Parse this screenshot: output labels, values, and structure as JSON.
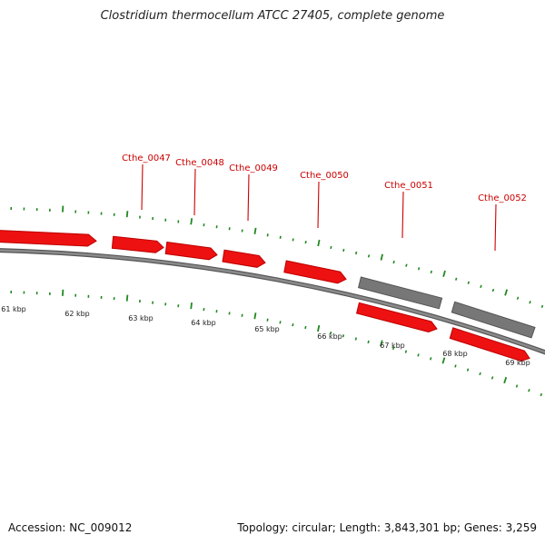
{
  "title": "Clostridium thermocellum ATCC 27405, complete genome",
  "footer": {
    "accession": "Accession: NC_009012",
    "summary": "Topology: circular; Length: 3,843,301 bp; Genes: 3,259"
  },
  "colors": {
    "forward_gene": "#ee1111",
    "other_gene": "#777777",
    "tick": "#228822",
    "label": "#cc0000",
    "backbone": "#8a8a8a"
  },
  "scale": {
    "unit": "kbp",
    "labels": [
      "61 kbp",
      "62 kbp",
      "63 kbp",
      "64 kbp",
      "65 kbp",
      "66 kbp",
      "67 kbp",
      "68 kbp",
      "69 kbp"
    ]
  },
  "genes": [
    {
      "id": "Cthe_0047",
      "label": "Cthe_0047",
      "color": "red"
    },
    {
      "id": "Cthe_0048",
      "label": "Cthe_0048",
      "color": "red"
    },
    {
      "id": "Cthe_0049",
      "label": "Cthe_0049",
      "color": "red"
    },
    {
      "id": "Cthe_0050",
      "label": "Cthe_0050",
      "color": "red"
    },
    {
      "id": "Cthe_0051",
      "label": "Cthe_0051",
      "color": "gray"
    },
    {
      "id": "Cthe_0052",
      "label": "Cthe_0052",
      "color": "gray"
    }
  ]
}
